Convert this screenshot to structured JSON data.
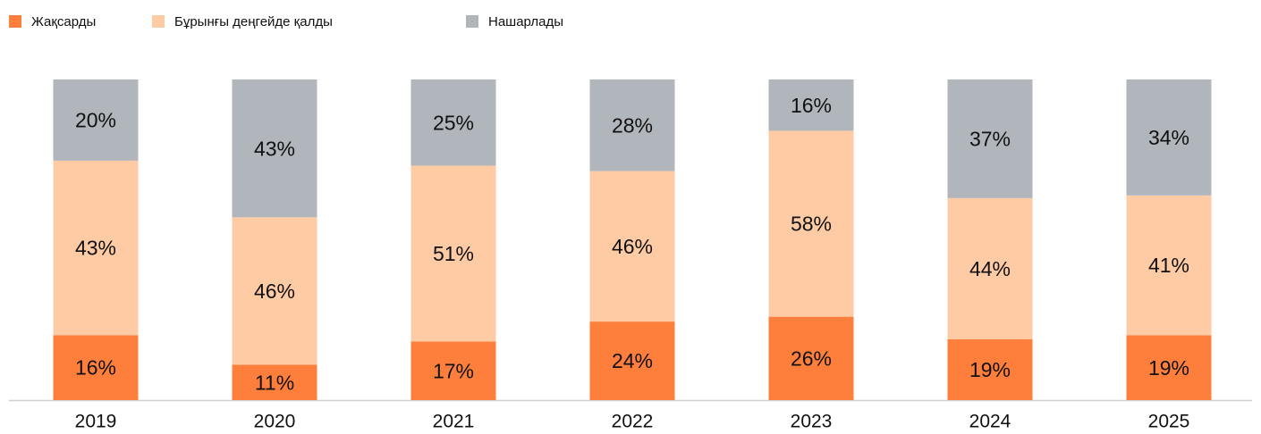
{
  "chart_data": {
    "type": "bar",
    "stacked": "percent",
    "categories": [
      "2019",
      "2020",
      "2021",
      "2022",
      "2023",
      "2024",
      "2025"
    ],
    "series": [
      {
        "name": "Жақсарды",
        "color": "#fe7f3c",
        "values": [
          16,
          11,
          17,
          24,
          26,
          19,
          19
        ],
        "value_labels": [
          "16%",
          "11%",
          "17%",
          "24%",
          "26%",
          "19%",
          "19%"
        ]
      },
      {
        "name": "Бұрынғы деңгейде қалды",
        "color": "#ffcba4",
        "values": [
          43,
          46,
          51,
          46,
          58,
          44,
          41
        ],
        "value_labels": [
          "43%",
          "46%",
          "51%",
          "46%",
          "58%",
          "44%",
          "41%"
        ]
      },
      {
        "name": "Нашарлады",
        "color": "#b1b5bc",
        "values": [
          20,
          43,
          25,
          28,
          16,
          37,
          34
        ],
        "value_labels": [
          "20%",
          "43%",
          "25%",
          "28%",
          "16%",
          "37%",
          "34%"
        ]
      }
    ],
    "legend": "top-left"
  }
}
